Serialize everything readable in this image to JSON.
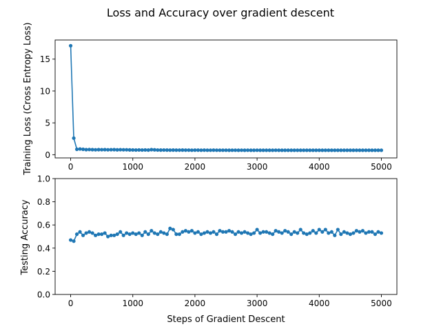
{
  "figure": {
    "title": "Loss and Accuracy over gradient descent"
  },
  "chart_data": [
    {
      "type": "line",
      "ylabel": "Training Loss (Cross Entropy Loss)",
      "xlabel": "",
      "xlim": [
        -250,
        5250
      ],
      "ylim": [
        -0.5,
        18
      ],
      "xticks": [
        0,
        1000,
        2000,
        3000,
        4000,
        5000
      ],
      "yticks": [
        0,
        5,
        10,
        15
      ],
      "grid": false,
      "series": [
        {
          "color": "#1f77b4",
          "marker": "circle",
          "x": [
            0,
            50,
            100,
            150,
            200,
            250,
            300,
            350,
            400,
            450,
            500,
            550,
            600,
            650,
            700,
            750,
            800,
            850,
            900,
            950,
            1000,
            1050,
            1100,
            1150,
            1200,
            1250,
            1300,
            1350,
            1400,
            1450,
            1500,
            1550,
            1600,
            1650,
            1700,
            1750,
            1800,
            1850,
            1900,
            1950,
            2000,
            2050,
            2100,
            2150,
            2200,
            2250,
            2300,
            2350,
            2400,
            2450,
            2500,
            2550,
            2600,
            2650,
            2700,
            2750,
            2800,
            2850,
            2900,
            2950,
            3000,
            3050,
            3100,
            3150,
            3200,
            3250,
            3300,
            3350,
            3400,
            3450,
            3500,
            3550,
            3600,
            3650,
            3700,
            3750,
            3800,
            3850,
            3900,
            3950,
            4000,
            4050,
            4100,
            4150,
            4200,
            4250,
            4300,
            4350,
            4400,
            4450,
            4500,
            4550,
            4600,
            4650,
            4700,
            4750,
            4800,
            4850,
            4900,
            4950,
            5000
          ],
          "y": [
            17.1,
            2.6,
            0.85,
            0.9,
            0.85,
            0.8,
            0.82,
            0.8,
            0.78,
            0.8,
            0.79,
            0.8,
            0.78,
            0.79,
            0.8,
            0.77,
            0.79,
            0.78,
            0.78,
            0.76,
            0.75,
            0.74,
            0.75,
            0.74,
            0.75,
            0.73,
            0.8,
            0.77,
            0.74,
            0.73,
            0.74,
            0.73,
            0.72,
            0.73,
            0.72,
            0.72,
            0.73,
            0.72,
            0.72,
            0.71,
            0.72,
            0.72,
            0.71,
            0.72,
            0.71,
            0.71,
            0.72,
            0.71,
            0.71,
            0.71,
            0.71,
            0.7,
            0.71,
            0.71,
            0.7,
            0.71,
            0.7,
            0.71,
            0.7,
            0.7,
            0.71,
            0.7,
            0.7,
            0.7,
            0.7,
            0.7,
            0.71,
            0.7,
            0.7,
            0.7,
            0.7,
            0.7,
            0.7,
            0.7,
            0.7,
            0.7,
            0.7,
            0.7,
            0.7,
            0.7,
            0.7,
            0.7,
            0.7,
            0.7,
            0.7,
            0.7,
            0.7,
            0.7,
            0.7,
            0.7,
            0.7,
            0.7,
            0.7,
            0.7,
            0.7,
            0.7,
            0.7,
            0.7,
            0.7,
            0.7,
            0.7
          ]
        }
      ]
    },
    {
      "type": "line",
      "ylabel": "Testing Accuracy",
      "xlabel": "Steps of Gradient Descent",
      "xlim": [
        -250,
        5250
      ],
      "ylim": [
        0.0,
        1.0
      ],
      "xticks": [
        0,
        1000,
        2000,
        3000,
        4000,
        5000
      ],
      "yticks": [
        0.0,
        0.2,
        0.4,
        0.6,
        0.8,
        1.0
      ],
      "grid": false,
      "series": [
        {
          "color": "#1f77b4",
          "marker": "circle",
          "x": [
            0,
            50,
            100,
            150,
            200,
            250,
            300,
            350,
            400,
            450,
            500,
            550,
            600,
            650,
            700,
            750,
            800,
            850,
            900,
            950,
            1000,
            1050,
            1100,
            1150,
            1200,
            1250,
            1300,
            1350,
            1400,
            1450,
            1500,
            1550,
            1600,
            1650,
            1700,
            1750,
            1800,
            1850,
            1900,
            1950,
            2000,
            2050,
            2100,
            2150,
            2200,
            2250,
            2300,
            2350,
            2400,
            2450,
            2500,
            2550,
            2600,
            2650,
            2700,
            2750,
            2800,
            2850,
            2900,
            2950,
            3000,
            3050,
            3100,
            3150,
            3200,
            3250,
            3300,
            3350,
            3400,
            3450,
            3500,
            3550,
            3600,
            3650,
            3700,
            3750,
            3800,
            3850,
            3900,
            3950,
            4000,
            4050,
            4100,
            4150,
            4200,
            4250,
            4300,
            4350,
            4400,
            4450,
            4500,
            4550,
            4600,
            4650,
            4700,
            4750,
            4800,
            4850,
            4900,
            4950,
            5000
          ],
          "y": [
            0.47,
            0.46,
            0.52,
            0.54,
            0.51,
            0.53,
            0.54,
            0.53,
            0.51,
            0.52,
            0.52,
            0.53,
            0.5,
            0.51,
            0.51,
            0.52,
            0.54,
            0.51,
            0.53,
            0.52,
            0.53,
            0.52,
            0.53,
            0.51,
            0.54,
            0.52,
            0.55,
            0.53,
            0.52,
            0.54,
            0.53,
            0.52,
            0.57,
            0.56,
            0.52,
            0.52,
            0.54,
            0.55,
            0.54,
            0.55,
            0.53,
            0.54,
            0.52,
            0.53,
            0.54,
            0.53,
            0.54,
            0.52,
            0.55,
            0.54,
            0.54,
            0.55,
            0.54,
            0.52,
            0.54,
            0.53,
            0.54,
            0.53,
            0.52,
            0.53,
            0.56,
            0.53,
            0.54,
            0.54,
            0.53,
            0.52,
            0.55,
            0.54,
            0.53,
            0.55,
            0.54,
            0.52,
            0.54,
            0.53,
            0.56,
            0.53,
            0.52,
            0.53,
            0.55,
            0.53,
            0.56,
            0.54,
            0.56,
            0.53,
            0.54,
            0.51,
            0.56,
            0.52,
            0.54,
            0.53,
            0.52,
            0.53,
            0.55,
            0.54,
            0.55,
            0.53,
            0.54,
            0.54,
            0.52,
            0.54,
            0.53
          ]
        }
      ]
    }
  ]
}
